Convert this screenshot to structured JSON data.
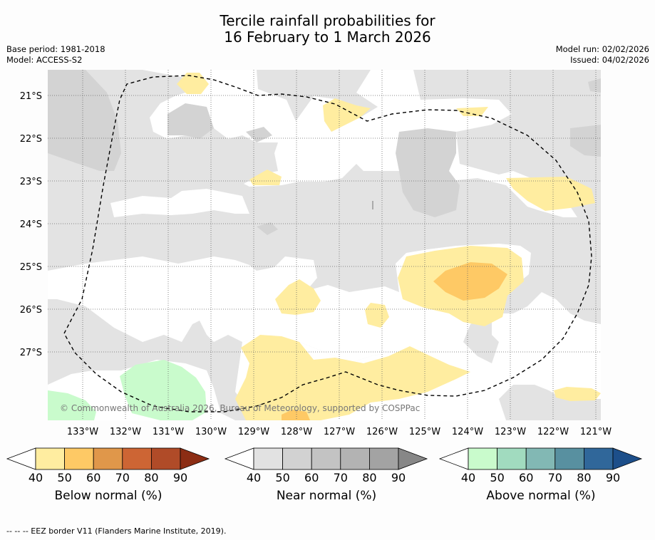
{
  "title_line1": "Tercile rainfall probabilities for",
  "title_line2": "16 February to 1 March 2026",
  "base_period": "Base period: 1981-2018",
  "model": "Model: ACCESS-S2",
  "model_run": "Model run: 02/02/2026",
  "issued": "Issued: 04/02/2026",
  "copyright": "© Commonwealth of Australia 2026, Bureau of Meteorology, supported by COSPPac",
  "lat_labels": [
    "21°S",
    "22°S",
    "23°S",
    "24°S",
    "25°S",
    "26°S",
    "27°S"
  ],
  "lon_labels": [
    "133°W",
    "132°W",
    "131°W",
    "130°W",
    "129°W",
    "128°W",
    "127°W",
    "126°W",
    "125°W",
    "124°W",
    "123°W",
    "122°W",
    "121°W"
  ],
  "colorbars": [
    {
      "title": "Below normal (%)",
      "ticks": [
        "40",
        "50",
        "60",
        "70",
        "80",
        "90"
      ],
      "colors": [
        "#ffeda0",
        "#fec965",
        "#e0974a",
        "#cd6534",
        "#b04b28",
        "#8c2d14"
      ]
    },
    {
      "title": "Near normal (%)",
      "ticks": [
        "40",
        "50",
        "60",
        "70",
        "80",
        "90"
      ],
      "colors": [
        "#e2e2e2",
        "#d2d2d2",
        "#c3c3c3",
        "#b3b3b3",
        "#a3a3a3",
        "#878787"
      ]
    },
    {
      "title": "Above normal (%)",
      "ticks": [
        "40",
        "50",
        "60",
        "70",
        "80",
        "90"
      ],
      "colors": [
        "#c9fbcc",
        "#a1dbbf",
        "#82b8b4",
        "#5890a0",
        "#30679a",
        "#1d4f8a"
      ]
    }
  ],
  "footer": "-- -- -- EEZ border V11 (Flanders Marine Institute, 2019)."
}
